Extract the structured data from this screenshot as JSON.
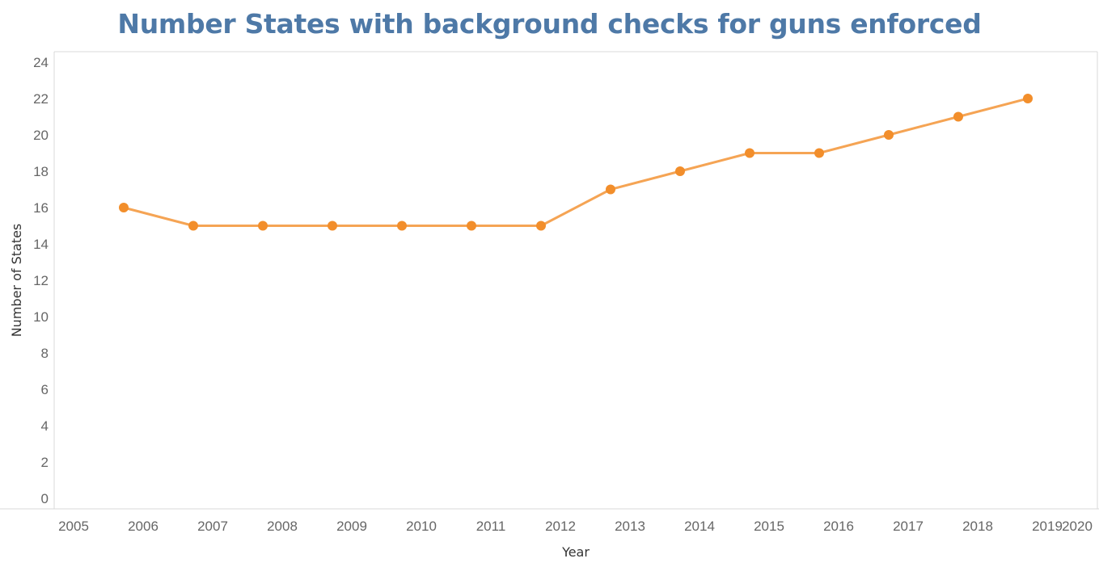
{
  "chart_data": {
    "type": "line",
    "title": "Number States with background checks for guns enforced",
    "xlabel": "Year",
    "ylabel": "Number of States",
    "x": [
      2006,
      2007,
      2008,
      2009,
      2010,
      2011,
      2012,
      2013,
      2014,
      2015,
      2016,
      2017,
      2018,
      2019
    ],
    "series": [
      {
        "values": [
          16,
          15,
          15,
          15,
          15,
          15,
          15,
          17,
          18,
          19,
          19,
          20,
          21,
          22
        ]
      }
    ],
    "xlim": [
      2005,
      2020
    ],
    "ylim": [
      0,
      24
    ],
    "x_ticks": [
      "2005",
      "2006",
      "2007",
      "2008",
      "2009",
      "2010",
      "2011",
      "2012",
      "2013",
      "2014",
      "2015",
      "2016",
      "2017",
      "2018",
      "2019",
      "2020"
    ],
    "y_ticks": [
      "0",
      "2",
      "4",
      "6",
      "8",
      "10",
      "12",
      "14",
      "16",
      "18",
      "20",
      "22",
      "24"
    ],
    "grid": false,
    "line_color": "#f5a454",
    "marker_color": "#f28e2b",
    "title_color": "#4e79a7"
  }
}
